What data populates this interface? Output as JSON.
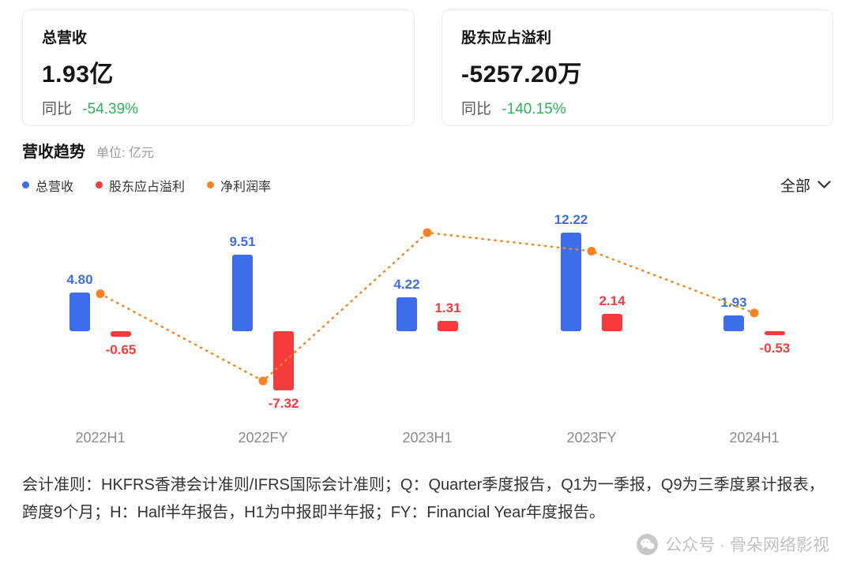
{
  "cards": [
    {
      "title": "总营收",
      "value": "1.93亿",
      "yoy_label": "同比",
      "yoy_value": "-54.39%"
    },
    {
      "title": "股东应占溢利",
      "value": "-5257.20万",
      "yoy_label": "同比",
      "yoy_value": "-140.15%"
    }
  ],
  "section": {
    "title": "营收趋势",
    "unit": "单位: 亿元"
  },
  "legend": [
    {
      "label": "总营收",
      "color": "#3d6eea"
    },
    {
      "label": "股东应占溢利",
      "color": "#f53b3b"
    },
    {
      "label": "净利润率",
      "color": "#f8821e"
    }
  ],
  "filter": {
    "label": "全部"
  },
  "colors": {
    "positive_green": "#2db45a",
    "bar_blue": "#3d6eea",
    "bar_red": "#f53b3b",
    "line_orange": "#f8821e"
  },
  "chart_data": {
    "type": "bar",
    "title": "营收趋势",
    "unit": "亿元",
    "categories": [
      "2022H1",
      "2022FY",
      "2023H1",
      "2023FY",
      "2024H1"
    ],
    "series": [
      {
        "name": "总营收",
        "type": "bar",
        "color": "#3d6eea",
        "values": [
          4.8,
          9.51,
          4.22,
          12.22,
          1.93
        ]
      },
      {
        "name": "股东应占溢利",
        "type": "bar",
        "color": "#f53b3b",
        "values": [
          -0.65,
          -7.32,
          1.31,
          2.14,
          -0.53
        ]
      },
      {
        "name": "净利润率",
        "type": "line",
        "style": "dotted",
        "color": "#f8821e",
        "values_percent_est": [
          -13.5,
          -77,
          31,
          17.5,
          -27.5
        ]
      }
    ],
    "value_labels": true,
    "grid": false,
    "legend_position": "top-left",
    "ylim_est": [
      -8,
      14
    ]
  },
  "footer": {
    "text": "会计准则：HKFRS香港会计准则/IFRS国际会计准则；Q：Quarter季度报告，Q1为一季报，Q9为三季度累计报表，跨度9个月；H：Half半年报告，H1为中报即半年报；FY：Financial Year年度报告。"
  },
  "watermark": {
    "text": "公众号 · 骨朵网络影视"
  }
}
